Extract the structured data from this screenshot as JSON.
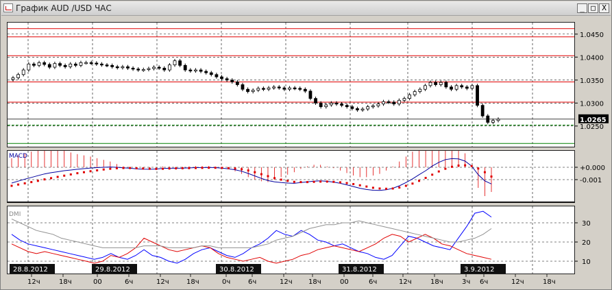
{
  "window": {
    "title": "График AUD /USD ЧАС",
    "buttons": {
      "minimize": "_",
      "maximize": "□",
      "close": "X"
    }
  },
  "colors": {
    "bg": "#d4d0c8",
    "panel": "#ffffff",
    "price": "#000000",
    "macd_line": "#0000a0",
    "signal": "#e00000",
    "dmi_plus": "#0000ff",
    "dmi_minus": "#e00000",
    "adx": "#909090",
    "support": "#008000"
  },
  "price_panel": {
    "axis_labels": [
      "1.0450",
      "1.0400",
      "1.0350",
      "1.0300",
      "1.0250"
    ],
    "current_price": "1.0265",
    "levels": [
      {
        "price": 1.0462,
        "color": "#e00000",
        "style": "solid"
      },
      {
        "price": 1.0444,
        "color": "#e00000",
        "style": "solid"
      },
      {
        "price": 1.0403,
        "color": "#e00000",
        "style": "solid"
      },
      {
        "price": 1.0346,
        "color": "#e00000",
        "style": "solid"
      },
      {
        "price": 1.0302,
        "color": "#e00000",
        "style": "solid"
      },
      {
        "price": 1.0252,
        "color": "#008000",
        "style": "dashed"
      },
      {
        "price": 1.0212,
        "color": "#008000",
        "style": "solid"
      }
    ]
  },
  "macd_panel": {
    "label": "MACD",
    "axis_labels": [
      "+0.000",
      "-0.001"
    ]
  },
  "dmi_panel": {
    "label": "DMI",
    "axis_labels": [
      "30",
      "20",
      "10"
    ]
  },
  "date_labels": [
    "28.8.2012",
    "29.8.2012",
    "30.8.2012",
    "31.8.2012",
    "3.9.2012"
  ],
  "time_axis": [
    "12ч",
    "18ч",
    "00",
    "6ч",
    "12ч",
    "18ч",
    "0ч",
    "6ч",
    "12ч",
    "18ч",
    "00",
    "6ч",
    "12ч",
    "18ч",
    "3ч",
    "6ч",
    "12ч",
    "18ч"
  ],
  "chart_data": [
    {
      "type": "candlestick",
      "title": "График AUD /USD ЧАС",
      "ylim": [
        1.0205,
        1.0475
      ],
      "ticks": [
        "1.0450",
        "1.0400",
        "1.0350",
        "1.0300",
        "1.0250"
      ],
      "close": [
        1.0355,
        1.0362,
        1.0372,
        1.0385,
        1.0382,
        1.0388,
        1.0384,
        1.0378,
        1.0386,
        1.0382,
        1.0379,
        1.0385,
        1.0382,
        1.0388,
        1.0388,
        1.0387,
        1.0385,
        1.0383,
        1.0382,
        1.0379,
        1.0377,
        1.0379,
        1.0376,
        1.0374,
        1.0372,
        1.0373,
        1.0375,
        1.0378,
        1.0376,
        1.0372,
        1.0383,
        1.0392,
        1.0382,
        1.0372,
        1.037,
        1.0372,
        1.0369,
        1.0366,
        1.0362,
        1.0357,
        1.0353,
        1.035,
        1.0346,
        1.034,
        1.033,
        1.0325,
        1.0328,
        1.0332,
        1.033,
        1.0333,
        1.0335,
        1.0333,
        1.033,
        1.0333,
        1.0332,
        1.033,
        1.0326,
        1.031,
        1.03,
        1.0292,
        1.0296,
        1.03,
        1.0298,
        1.0295,
        1.0292,
        1.0288,
        1.0285,
        1.0287,
        1.0292,
        1.0294,
        1.0298,
        1.0303,
        1.0302,
        1.0298,
        1.0306,
        1.031,
        1.0318,
        1.0325,
        1.033,
        1.0338,
        1.0345,
        1.034,
        1.0345,
        1.0335,
        1.033,
        1.0338,
        1.0335,
        1.0332,
        1.0338,
        1.0295,
        1.0272,
        1.0258,
        1.0262,
        1.0265
      ]
    },
    {
      "type": "line",
      "title": "MACD",
      "ticks": [
        "+0.000",
        "-0.001"
      ],
      "series": [
        {
          "values": [
            -0.00128,
            -0.00112,
            -0.00096,
            -0.00082,
            -0.00068,
            -0.00054,
            -0.00044,
            -0.00036,
            -0.00028,
            -0.00022,
            -0.00016,
            -0.00011,
            -6e-05,
            -3e-05,
            0.0,
            2e-05,
            0.0,
            -4e-05,
            -8e-05,
            -0.00012,
            -0.00015,
            -0.00016,
            -0.00014,
            -0.0001,
            -8e-05,
            -8e-05,
            -7e-05,
            -5e-05,
            -3e-05,
            -2e-05,
            -1e-05,
            -3e-05,
            -7e-05,
            -0.00012,
            -0.0002,
            -0.00032,
            -0.0005,
            -0.0007,
            -0.0009,
            -0.00108,
            -0.00118,
            -0.00124,
            -0.00128,
            -0.0013,
            -0.00124,
            -0.00118,
            -0.00112,
            -0.0011,
            -0.00114,
            -0.0012,
            -0.0013,
            -0.00142,
            -0.00156,
            -0.0017,
            -0.0018,
            -0.00186,
            -0.00188,
            -0.00182,
            -0.0017,
            -0.0015,
            -0.00124,
            -0.00094,
            -0.0006,
            -0.00028,
            0.0001,
            0.0004,
            0.00062,
            0.0007,
            0.00068,
            0.0005,
            0.0001,
            -0.0006,
            -0.0011,
            -0.00135
          ]
        },
        {
          "values": [
            -0.0015,
            -0.0014,
            -0.0013,
            -0.0012,
            -0.0011,
            -0.00098,
            -0.00088,
            -0.00078,
            -0.00068,
            -0.00058,
            -0.00048,
            -0.0004,
            -0.00032,
            -0.00025,
            -0.00018,
            -0.00012,
            -8e-05,
            -6e-05,
            -6e-05,
            -8e-05,
            -0.0001,
            -0.00012,
            -0.00013,
            -0.00012,
            -0.0001,
            -9e-05,
            -8e-05,
            -7e-05,
            -6e-05,
            -5e-05,
            -4e-05,
            -4e-05,
            -5e-05,
            -7e-05,
            -0.0001,
            -0.00016,
            -0.00026,
            -0.0004,
            -0.00056,
            -0.00072,
            -0.00088,
            -0.001,
            -0.0011,
            -0.00118,
            -0.0012,
            -0.0012,
            -0.00118,
            -0.00116,
            -0.00116,
            -0.00118,
            -0.00122,
            -0.00128,
            -0.00136,
            -0.00146,
            -0.00156,
            -0.00166,
            -0.00172,
            -0.00174,
            -0.00172,
            -0.00164,
            -0.0015,
            -0.00132,
            -0.0011,
            -0.00086,
            -0.0006,
            -0.00034,
            -0.00012,
            4e-05,
            0.00014,
            0.00016,
            0.0001,
            -0.0001,
            -0.0004,
            -0.00075
          ]
        }
      ]
    },
    {
      "type": "line",
      "title": "DMI",
      "ticks": [
        "30",
        "20",
        "10"
      ],
      "series": [
        {
          "values": [
            24,
            21,
            19,
            18,
            17,
            16,
            15,
            14,
            13,
            12,
            11,
            12,
            14,
            12,
            11,
            13,
            16,
            13,
            12,
            10,
            9,
            11,
            14,
            16,
            17,
            15,
            13,
            12,
            14,
            17,
            19,
            22,
            26,
            24,
            23,
            26,
            24,
            21,
            20,
            18,
            19,
            17,
            15,
            14,
            12,
            11,
            13,
            18,
            23,
            22,
            20,
            18,
            17,
            16,
            22,
            28,
            35,
            36,
            33
          ]
        },
        {
          "values": [
            19,
            17,
            15,
            14,
            15,
            14,
            13,
            12,
            11,
            10,
            9,
            10,
            13,
            12,
            14,
            17,
            22,
            20,
            18,
            16,
            15,
            16,
            17,
            18,
            17,
            14,
            12,
            11,
            10,
            11,
            12,
            10,
            9,
            10,
            11,
            13,
            14,
            16,
            17,
            18,
            17,
            16,
            15,
            17,
            19,
            22,
            24,
            23,
            20,
            22,
            24,
            22,
            19,
            18,
            16,
            14,
            13,
            12,
            11
          ]
        },
        {
          "values": [
            32,
            30,
            28,
            26,
            25,
            24,
            22,
            21,
            20,
            19,
            18,
            17,
            17,
            17,
            17,
            17,
            18,
            18,
            18,
            17,
            17,
            17,
            17,
            18,
            18,
            17,
            17,
            17,
            17,
            17,
            18,
            19,
            21,
            22,
            23,
            25,
            27,
            28,
            29,
            29,
            30,
            30,
            31,
            30,
            29,
            28,
            27,
            26,
            25,
            24,
            23,
            22,
            21,
            20,
            20,
            21,
            22,
            24,
            27
          ]
        }
      ]
    }
  ]
}
